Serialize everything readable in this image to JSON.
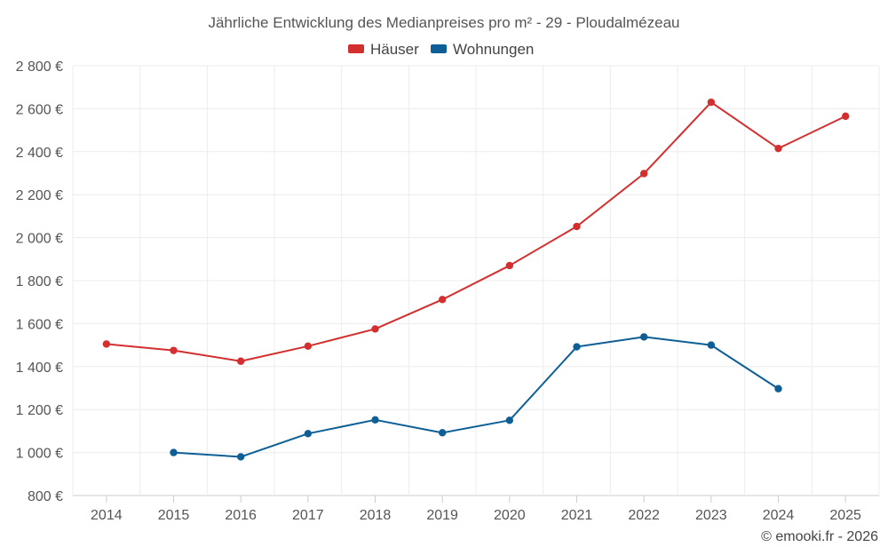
{
  "chart_data": {
    "type": "line",
    "title": "Jährliche Entwicklung des Medianpreises pro m² - 29 - Ploudalmézeau",
    "categories": [
      "2014",
      "2015",
      "2016",
      "2017",
      "2018",
      "2019",
      "2020",
      "2021",
      "2022",
      "2023",
      "2024",
      "2025"
    ],
    "y_tick_labels": [
      "800 €",
      "1 000 €",
      "1 200 €",
      "1 400 €",
      "1 600 €",
      "1 800 €",
      "2 000 €",
      "2 200 €",
      "2 400 €",
      "2 600 €",
      "2 800 €"
    ],
    "y_tick_values": [
      800,
      1000,
      1200,
      1400,
      1600,
      1800,
      2000,
      2200,
      2400,
      2600,
      2800
    ],
    "ylim": [
      800,
      2800
    ],
    "legend_position": "top-center",
    "series": [
      {
        "name": "Häuser",
        "color": "#d32f2f",
        "values": [
          1505,
          1475,
          1425,
          1495,
          1575,
          1712,
          1870,
          2052,
          2298,
          2630,
          2415,
          2565
        ]
      },
      {
        "name": "Wohnungen",
        "color": "#0d5f96",
        "values": [
          null,
          1000,
          980,
          1088,
          1152,
          1092,
          1150,
          1492,
          1538,
          1500,
          1297,
          null
        ]
      }
    ],
    "credit": "© emooki.fr - 2026"
  }
}
